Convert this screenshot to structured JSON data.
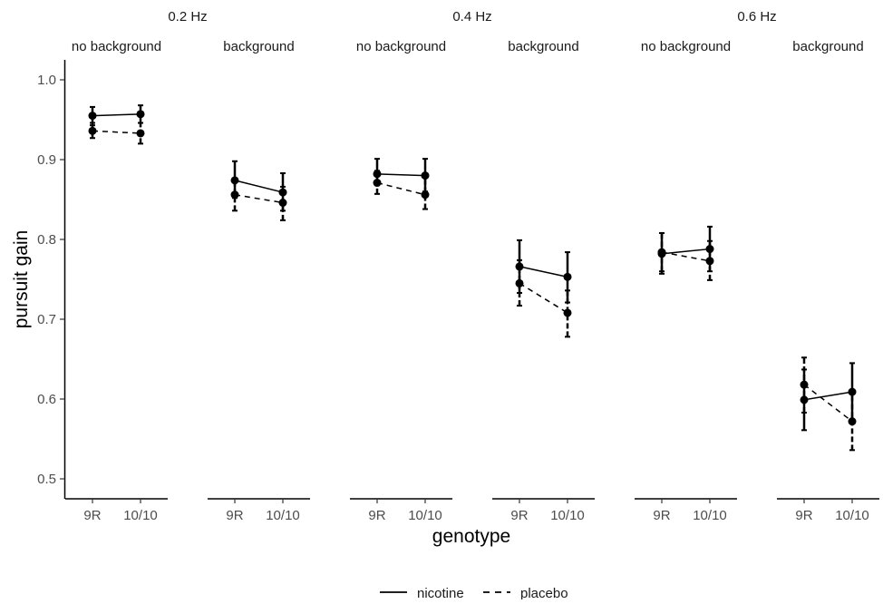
{
  "chart_data": {
    "type": "line",
    "facet_rows": [
      "0.2 Hz",
      "0.4 Hz",
      "0.6 Hz"
    ],
    "panels": [
      {
        "frequency": "0.2 Hz",
        "condition": "no background",
        "series": [
          {
            "name": "nicotine",
            "linetype": "solid",
            "values": [
              0.955,
              0.957
            ],
            "err_low": [
              0.943,
              0.946
            ],
            "err_high": [
              0.966,
              0.968
            ]
          },
          {
            "name": "placebo",
            "linetype": "dashed",
            "values": [
              0.936,
              0.933
            ],
            "err_low": [
              0.927,
              0.92
            ],
            "err_high": [
              0.946,
              0.946
            ]
          }
        ]
      },
      {
        "frequency": "0.2 Hz",
        "condition": "background",
        "series": [
          {
            "name": "nicotine",
            "linetype": "solid",
            "values": [
              0.874,
              0.859
            ],
            "err_low": [
              0.852,
              0.836
            ],
            "err_high": [
              0.898,
              0.883
            ]
          },
          {
            "name": "placebo",
            "linetype": "dashed",
            "values": [
              0.856,
              0.846
            ],
            "err_low": [
              0.836,
              0.824
            ],
            "err_high": [
              0.872,
              0.866
            ]
          }
        ]
      },
      {
        "frequency": "0.4 Hz",
        "condition": "no background",
        "series": [
          {
            "name": "nicotine",
            "linetype": "solid",
            "values": [
              0.882,
              0.88
            ],
            "err_low": [
              0.868,
              0.86
            ],
            "err_high": [
              0.901,
              0.901
            ]
          },
          {
            "name": "placebo",
            "linetype": "dashed",
            "values": [
              0.871,
              0.856
            ],
            "err_low": [
              0.857,
              0.838
            ],
            "err_high": [
              0.886,
              0.878
            ]
          }
        ]
      },
      {
        "frequency": "0.4 Hz",
        "condition": "background",
        "series": [
          {
            "name": "nicotine",
            "linetype": "solid",
            "values": [
              0.766,
              0.753
            ],
            "err_low": [
              0.733,
              0.721
            ],
            "err_high": [
              0.799,
              0.784
            ]
          },
          {
            "name": "placebo",
            "linetype": "dashed",
            "values": [
              0.745,
              0.708
            ],
            "err_low": [
              0.717,
              0.678
            ],
            "err_high": [
              0.774,
              0.736
            ]
          }
        ]
      },
      {
        "frequency": "0.6 Hz",
        "condition": "no background",
        "series": [
          {
            "name": "nicotine",
            "linetype": "solid",
            "values": [
              0.782,
              0.788
            ],
            "err_low": [
              0.757,
              0.76
            ],
            "err_high": [
              0.808,
              0.816
            ]
          },
          {
            "name": "placebo",
            "linetype": "dashed",
            "values": [
              0.784,
              0.773
            ],
            "err_low": [
              0.76,
              0.749
            ],
            "err_high": [
              0.808,
              0.798
            ]
          }
        ]
      },
      {
        "frequency": "0.6 Hz",
        "condition": "background",
        "series": [
          {
            "name": "nicotine",
            "linetype": "solid",
            "values": [
              0.599,
              0.609
            ],
            "err_low": [
              0.561,
              0.574
            ],
            "err_high": [
              0.637,
              0.645
            ]
          },
          {
            "name": "placebo",
            "linetype": "dashed",
            "values": [
              0.618,
              0.572
            ],
            "err_low": [
              0.583,
              0.536
            ],
            "err_high": [
              0.652,
              0.608
            ]
          }
        ]
      }
    ],
    "categories": [
      "9R",
      "10/10"
    ],
    "xlabel": "genotype",
    "ylabel": "pursuit gain",
    "ylim": [
      0.475,
      1.025
    ],
    "yticks": [
      "0.5",
      "0.6",
      "0.7",
      "0.8",
      "0.9",
      "1.0"
    ],
    "legend": {
      "position": "bottom",
      "entries": [
        "nicotine",
        "placebo"
      ]
    },
    "grid": false,
    "color": "#000000"
  }
}
